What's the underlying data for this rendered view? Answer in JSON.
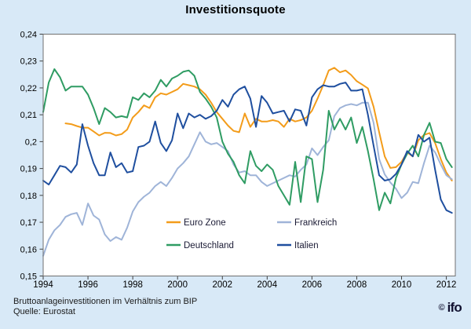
{
  "header": {
    "title": "Investitionsquote"
  },
  "footer": {
    "line1": "Bruttoanlageinvestitionen im Verhältnis zum BIP",
    "line2": "Quelle: Eurostat",
    "logo_copyright": "©",
    "logo_text": "ifo"
  },
  "colors": {
    "background": "#d8e9f7",
    "plot_background": "#ffffff",
    "frame": "#707070",
    "tick": "#404040",
    "legend_text": "#1b1b35",
    "euro_zone": "#F39C1A",
    "frankreich": "#9FB4D8",
    "deutschland": "#2F9C63",
    "italien": "#1F4F9F"
  },
  "chart_data": {
    "type": "line",
    "title": "Investitionsquote",
    "subtitle_note": "Bruttoanlageinvestitionen im Verhältnis zum BIP",
    "source": "Quelle: Eurostat",
    "grid": false,
    "x_axis": {
      "min": 1994.0,
      "max": 2012.4,
      "tick_years": [
        1994,
        1996,
        1998,
        2000,
        2002,
        2004,
        2006,
        2008,
        2010,
        2012
      ]
    },
    "y_axis": {
      "min": 0.15,
      "max": 0.24,
      "step": 0.01,
      "tick_labels_top_to_bottom": [
        "0,24",
        "0,23",
        "0,22",
        "0,21",
        "0,2",
        "0,19",
        "0,18",
        "0,17",
        "0,16",
        "0,15"
      ]
    },
    "legend": {
      "position": "inside-bottom-center",
      "rows": [
        [
          "Euro Zone",
          "Frankreich"
        ],
        [
          "Deutschland",
          "Italien"
        ]
      ]
    },
    "series": [
      {
        "name": "Euro Zone",
        "color": "#F39C1A",
        "start": 1995.0,
        "step": 0.25,
        "values": [
          0.2068,
          0.2065,
          0.2058,
          0.2052,
          0.2052,
          0.2038,
          0.2023,
          0.2033,
          0.2032,
          0.2023,
          0.2028,
          0.2045,
          0.209,
          0.211,
          0.2135,
          0.2125,
          0.2165,
          0.218,
          0.2175,
          0.2185,
          0.2195,
          0.2215,
          0.221,
          0.2205,
          0.2195,
          0.2175,
          0.2145,
          0.211,
          0.2085,
          0.206,
          0.204,
          0.2035,
          0.2105,
          0.2055,
          0.2085,
          0.2075,
          0.2075,
          0.208,
          0.2075,
          0.2055,
          0.2085,
          0.2075,
          0.208,
          0.209,
          0.2115,
          0.216,
          0.221,
          0.2265,
          0.2275,
          0.2258,
          0.2265,
          0.2248,
          0.2225,
          0.2212,
          0.2198,
          0.213,
          0.2035,
          0.1945,
          0.1902,
          0.1905,
          0.1925,
          0.196,
          0.1945,
          0.2005,
          0.2025,
          0.2032,
          0.1995,
          0.1935,
          0.1885,
          0.1855
        ]
      },
      {
        "name": "Frankreich",
        "color": "#9FB4D8",
        "start": 1994.0,
        "step": 0.25,
        "values": [
          0.1575,
          0.1635,
          0.167,
          0.169,
          0.172,
          0.173,
          0.1735,
          0.169,
          0.177,
          0.1725,
          0.171,
          0.1655,
          0.163,
          0.1645,
          0.1635,
          0.168,
          0.174,
          0.1775,
          0.1795,
          0.181,
          0.1835,
          0.185,
          0.1835,
          0.1865,
          0.19,
          0.192,
          0.1945,
          0.199,
          0.2035,
          0.2,
          0.199,
          0.1995,
          0.198,
          0.1965,
          0.1915,
          0.1885,
          0.189,
          0.1875,
          0.1875,
          0.185,
          0.1835,
          0.1845,
          0.1855,
          0.1865,
          0.1875,
          0.187,
          0.1895,
          0.1915,
          0.1975,
          0.195,
          0.198,
          0.2005,
          0.2095,
          0.2125,
          0.2135,
          0.214,
          0.2135,
          0.2145,
          0.2145,
          0.207,
          0.1935,
          0.1878,
          0.1848,
          0.1825,
          0.179,
          0.181,
          0.185,
          0.1845,
          0.192,
          0.1985,
          0.196,
          0.1915,
          0.1875,
          0.186
        ]
      },
      {
        "name": "Deutschland",
        "color": "#2F9C63",
        "start": 1994.0,
        "step": 0.25,
        "values": [
          0.211,
          0.222,
          0.227,
          0.224,
          0.219,
          0.2205,
          0.2205,
          0.2205,
          0.2175,
          0.2125,
          0.2065,
          0.2125,
          0.211,
          0.209,
          0.2095,
          0.209,
          0.2165,
          0.2155,
          0.218,
          0.2165,
          0.219,
          0.223,
          0.2205,
          0.2235,
          0.2245,
          0.226,
          0.2265,
          0.2245,
          0.2185,
          0.216,
          0.213,
          0.209,
          0.2,
          0.1955,
          0.1925,
          0.1875,
          0.1845,
          0.1965,
          0.191,
          0.189,
          0.1915,
          0.1895,
          0.1835,
          0.18,
          0.1765,
          0.1925,
          0.1775,
          0.1945,
          0.1935,
          0.1775,
          0.1895,
          0.2115,
          0.2045,
          0.2085,
          0.2045,
          0.209,
          0.1995,
          0.2055,
          0.1965,
          0.186,
          0.1745,
          0.181,
          0.177,
          0.1865,
          0.1915,
          0.1955,
          0.1985,
          0.1945,
          0.2025,
          0.207,
          0.2,
          0.1995,
          0.1935,
          0.1905
        ]
      },
      {
        "name": "Italien",
        "color": "#1F4F9F",
        "start": 1994.0,
        "step": 0.25,
        "values": [
          0.1855,
          0.184,
          0.1875,
          0.191,
          0.1905,
          0.1885,
          0.1915,
          0.2065,
          0.1985,
          0.192,
          0.1875,
          0.1875,
          0.196,
          0.1905,
          0.192,
          0.1885,
          0.189,
          0.198,
          0.1985,
          0.2,
          0.2075,
          0.1995,
          0.1965,
          0.2005,
          0.2105,
          0.205,
          0.2105,
          0.209,
          0.21,
          0.2085,
          0.2095,
          0.2115,
          0.2155,
          0.213,
          0.2175,
          0.2195,
          0.2205,
          0.216,
          0.2055,
          0.217,
          0.2145,
          0.2105,
          0.211,
          0.2115,
          0.2075,
          0.212,
          0.2115,
          0.206,
          0.2165,
          0.2195,
          0.221,
          0.2205,
          0.2205,
          0.2215,
          0.222,
          0.219,
          0.219,
          0.2195,
          0.21,
          0.1985,
          0.1875,
          0.1855,
          0.186,
          0.188,
          0.1915,
          0.1965,
          0.1945,
          0.2025,
          0.2,
          0.2015,
          0.1895,
          0.1785,
          0.1745,
          0.1735
        ]
      }
    ]
  }
}
